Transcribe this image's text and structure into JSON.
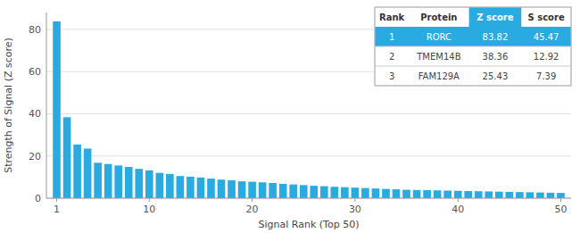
{
  "chart_data": {
    "type": "bar",
    "xlabel": "Signal Rank (Top 50)",
    "ylabel": "Strength of Signal (Z score)",
    "x": [
      1,
      2,
      3,
      4,
      5,
      6,
      7,
      8,
      9,
      10,
      11,
      12,
      13,
      14,
      15,
      16,
      17,
      18,
      19,
      20,
      21,
      22,
      23,
      24,
      25,
      26,
      27,
      28,
      29,
      30,
      31,
      32,
      33,
      34,
      35,
      36,
      37,
      38,
      39,
      40,
      41,
      42,
      43,
      44,
      45,
      46,
      47,
      48,
      49,
      50
    ],
    "values": [
      83.82,
      38.36,
      25.43,
      23.5,
      16.8,
      16.2,
      15.5,
      14.8,
      13.9,
      13.2,
      12.0,
      11.5,
      10.5,
      10.2,
      9.8,
      9.3,
      8.8,
      8.5,
      8.0,
      7.8,
      7.5,
      7.2,
      6.8,
      6.5,
      6.2,
      5.9,
      5.7,
      5.4,
      5.2,
      5.0,
      4.8,
      4.6,
      4.4,
      4.2,
      4.0,
      3.9,
      3.8,
      3.7,
      3.6,
      3.5,
      3.4,
      3.3,
      3.2,
      3.1,
      3.0,
      2.9,
      2.8,
      2.7,
      2.6,
      2.5
    ],
    "color": "#29ABE2",
    "xlim": [
      0,
      51
    ],
    "xticks": [
      1,
      10,
      20,
      30,
      40,
      50
    ],
    "ylim": [
      0,
      88
    ],
    "yticks": [
      0,
      20,
      40,
      60,
      80
    ],
    "grid": true,
    "table": {
      "columns": [
        "Rank",
        "Protein",
        "Z score",
        "S score"
      ],
      "rows": [
        [
          "1",
          "RORC",
          "83.82",
          "45.47"
        ],
        [
          "2",
          "TMEM14B",
          "38.36",
          "12.92"
        ],
        [
          "3",
          "FAM129A",
          "25.43",
          "7.39"
        ]
      ]
    }
  }
}
